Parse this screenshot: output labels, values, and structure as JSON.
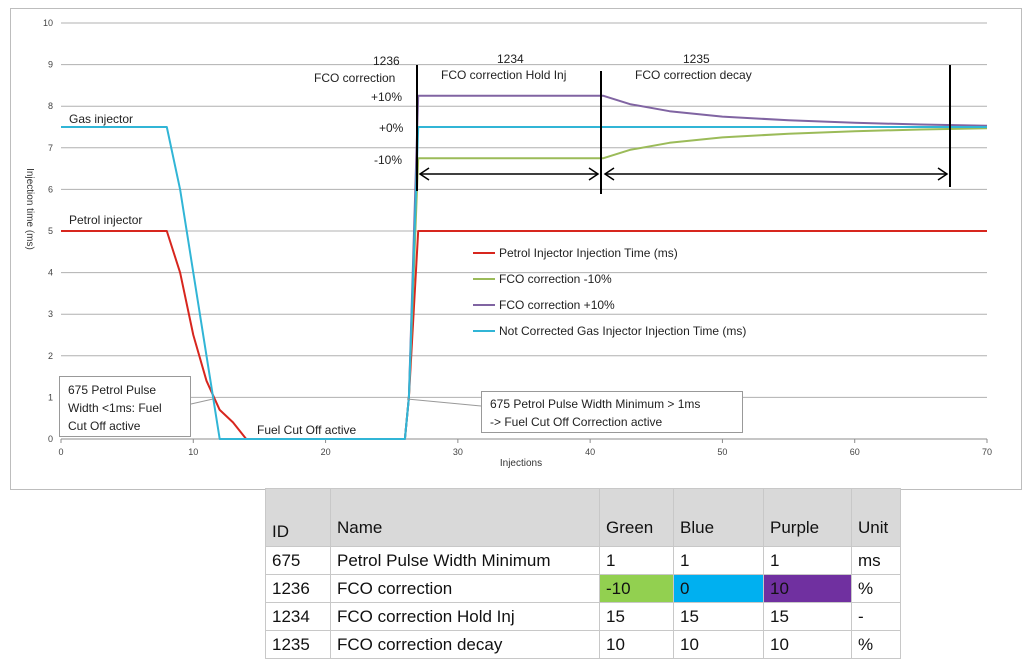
{
  "chart_data": {
    "type": "line",
    "xlabel": "Injections",
    "ylabel": "Injection time (ms)",
    "xlim": [
      0,
      70
    ],
    "ylim": [
      0,
      10
    ],
    "x_ticks": [
      0,
      10,
      20,
      30,
      40,
      50,
      60,
      70
    ],
    "y_ticks": [
      0,
      1,
      2,
      3,
      4,
      5,
      6,
      7,
      8,
      9,
      10
    ],
    "grid": "horizontal",
    "legend_position": "center",
    "series": [
      {
        "name": "Petrol Injector Injection Time (ms)",
        "color": "#d7261e",
        "points": [
          [
            0,
            5
          ],
          [
            8,
            5
          ],
          [
            9,
            4
          ],
          [
            10,
            2.5
          ],
          [
            11,
            1.4
          ],
          [
            12,
            0.7
          ],
          [
            13,
            0.4
          ],
          [
            14,
            0
          ],
          [
            26,
            0
          ],
          [
            26.3,
            1.0
          ],
          [
            27,
            5
          ],
          [
            70,
            5
          ]
        ]
      },
      {
        "name": "FCO correction -10%",
        "color": "#9bbb59",
        "points": [
          [
            26,
            0
          ],
          [
            26.3,
            1.0
          ],
          [
            27,
            6.75
          ],
          [
            41,
            6.75
          ],
          [
            43,
            6.95
          ],
          [
            46,
            7.12
          ],
          [
            50,
            7.25
          ],
          [
            55,
            7.34
          ],
          [
            60,
            7.4
          ],
          [
            65,
            7.44
          ],
          [
            70,
            7.47
          ]
        ]
      },
      {
        "name": "FCO correction +10%",
        "color": "#8064a2",
        "points": [
          [
            26,
            0
          ],
          [
            26.3,
            1.0
          ],
          [
            27,
            8.25
          ],
          [
            41,
            8.25
          ],
          [
            43,
            8.05
          ],
          [
            46,
            7.88
          ],
          [
            50,
            7.75
          ],
          [
            55,
            7.66
          ],
          [
            60,
            7.6
          ],
          [
            65,
            7.56
          ],
          [
            70,
            7.53
          ]
        ]
      },
      {
        "name": "Not Corrected Gas Injector Injection Time (ms)",
        "color": "#31b5d6",
        "points": [
          [
            0,
            7.5
          ],
          [
            8,
            7.5
          ],
          [
            9,
            6
          ],
          [
            10,
            4
          ],
          [
            11,
            2
          ],
          [
            12,
            0
          ],
          [
            26,
            0
          ],
          [
            26.3,
            1.0
          ],
          [
            27,
            7.5
          ],
          [
            70,
            7.5
          ]
        ]
      }
    ],
    "annotations": {
      "gas_injector": "Gas injector",
      "petrol_injector": "Petrol injector",
      "fuel_cut_off_active": "Fuel Cut Off active",
      "callout_left": [
        "675 Petrol Pulse",
        "Width <1ms: Fuel",
        "Cut Off active"
      ],
      "callout_right": [
        "675 Petrol Pulse Width Minimum > 1ms",
        "-> Fuel Cut Off Correction active"
      ],
      "id_1236": "1236",
      "fco_correction": "FCO correction",
      "id_1234": "1234",
      "fco_hold": "FCO correction Hold Inj",
      "id_1235": "1235",
      "fco_decay": "FCO correction decay",
      "plus10": "+10%",
      "zero": "+0%",
      "minus10": "-10%"
    }
  },
  "table": {
    "headers": [
      "ID",
      "Name",
      "Green",
      "Blue",
      "Purple",
      "Unit"
    ],
    "rows": [
      [
        "675",
        "Petrol Pulse Width Minimum",
        "1",
        "1",
        "1",
        "ms"
      ],
      [
        "1236",
        "FCO correction",
        "-10",
        "0",
        "10",
        "%"
      ],
      [
        "1234",
        "FCO correction Hold Inj",
        "15",
        "15",
        "15",
        "-"
      ],
      [
        "1235",
        "FCO correction decay",
        "10",
        "10",
        "10",
        "%"
      ]
    ],
    "swatch_colors": {
      "green": "#92d050",
      "blue": "#00b0f0",
      "purple": "#7030a0"
    }
  }
}
